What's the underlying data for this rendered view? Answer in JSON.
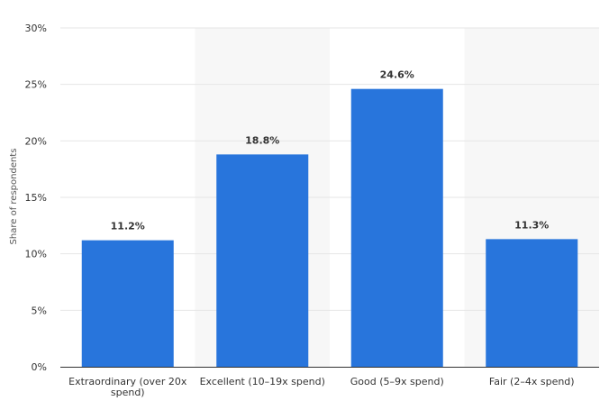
{
  "chart_data": {
    "type": "bar",
    "categories": [
      [
        "Extraordinary (over 20x",
        "spend)"
      ],
      [
        "Excellent (10–19x spend)"
      ],
      [
        "Good (5–9x spend)"
      ],
      [
        "Fair (2–4x spend)"
      ]
    ],
    "values": [
      11.2,
      18.8,
      24.6,
      11.3
    ],
    "value_labels": [
      "11.2%",
      "18.8%",
      "24.6%",
      "11.3%"
    ],
    "ylabel": "Share of respondents",
    "ylim": [
      0,
      30
    ],
    "yticks": [
      0,
      5,
      10,
      15,
      20,
      25,
      30
    ],
    "ytick_labels": [
      "0%",
      "5%",
      "10%",
      "15%",
      "20%",
      "25%",
      "30%"
    ],
    "grid": true,
    "alternating_column_shading": true,
    "colors": {
      "bar": "#2875dc",
      "gridline": "#e6e6e6",
      "band": "#f7f7f7",
      "axis": "#333333"
    }
  }
}
